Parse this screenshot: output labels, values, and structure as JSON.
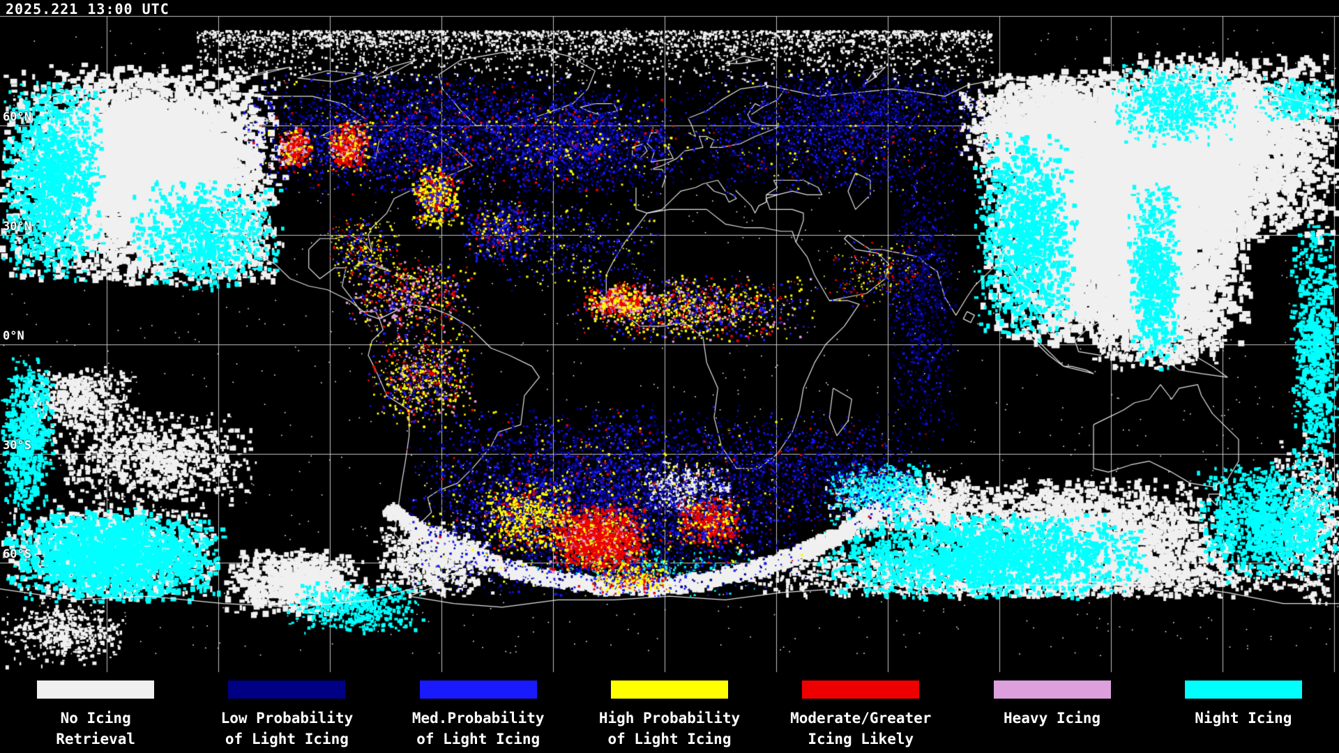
{
  "header": {
    "timestamp": "2025.221 13:00 UTC"
  },
  "map": {
    "latitude_labels": [
      "60°N",
      "30°N",
      "0°N",
      "30°S",
      "60°S"
    ],
    "background_color": "#000000",
    "gridline_color": "#e6e6e6",
    "coastline_color": "#f0f0f0"
  },
  "legend": {
    "items": [
      {
        "key": "no-icing-retrieval",
        "color": "#f0f0f0",
        "line1": "No Icing",
        "line2": "Retrieval"
      },
      {
        "key": "low-probability-light-icing",
        "color": "#000085",
        "line1": "Low Probability",
        "line2": "of Light Icing"
      },
      {
        "key": "med-probability-light-icing",
        "color": "#1a1aff",
        "line1": "Med.Probability",
        "line2": "of Light Icing"
      },
      {
        "key": "high-probability-light-icing",
        "color": "#ffff00",
        "line1": "High Probability",
        "line2": "of Light Icing"
      },
      {
        "key": "moderate-greater-icing",
        "color": "#ee0000",
        "line1": "Moderate/Greater",
        "line2": "Icing Likely"
      },
      {
        "key": "heavy-icing",
        "color": "#dda0dd",
        "line1": "Heavy Icing",
        "line2": ""
      },
      {
        "key": "night-icing",
        "color": "#00ffff",
        "line1": "Night Icing",
        "line2": ""
      }
    ]
  }
}
